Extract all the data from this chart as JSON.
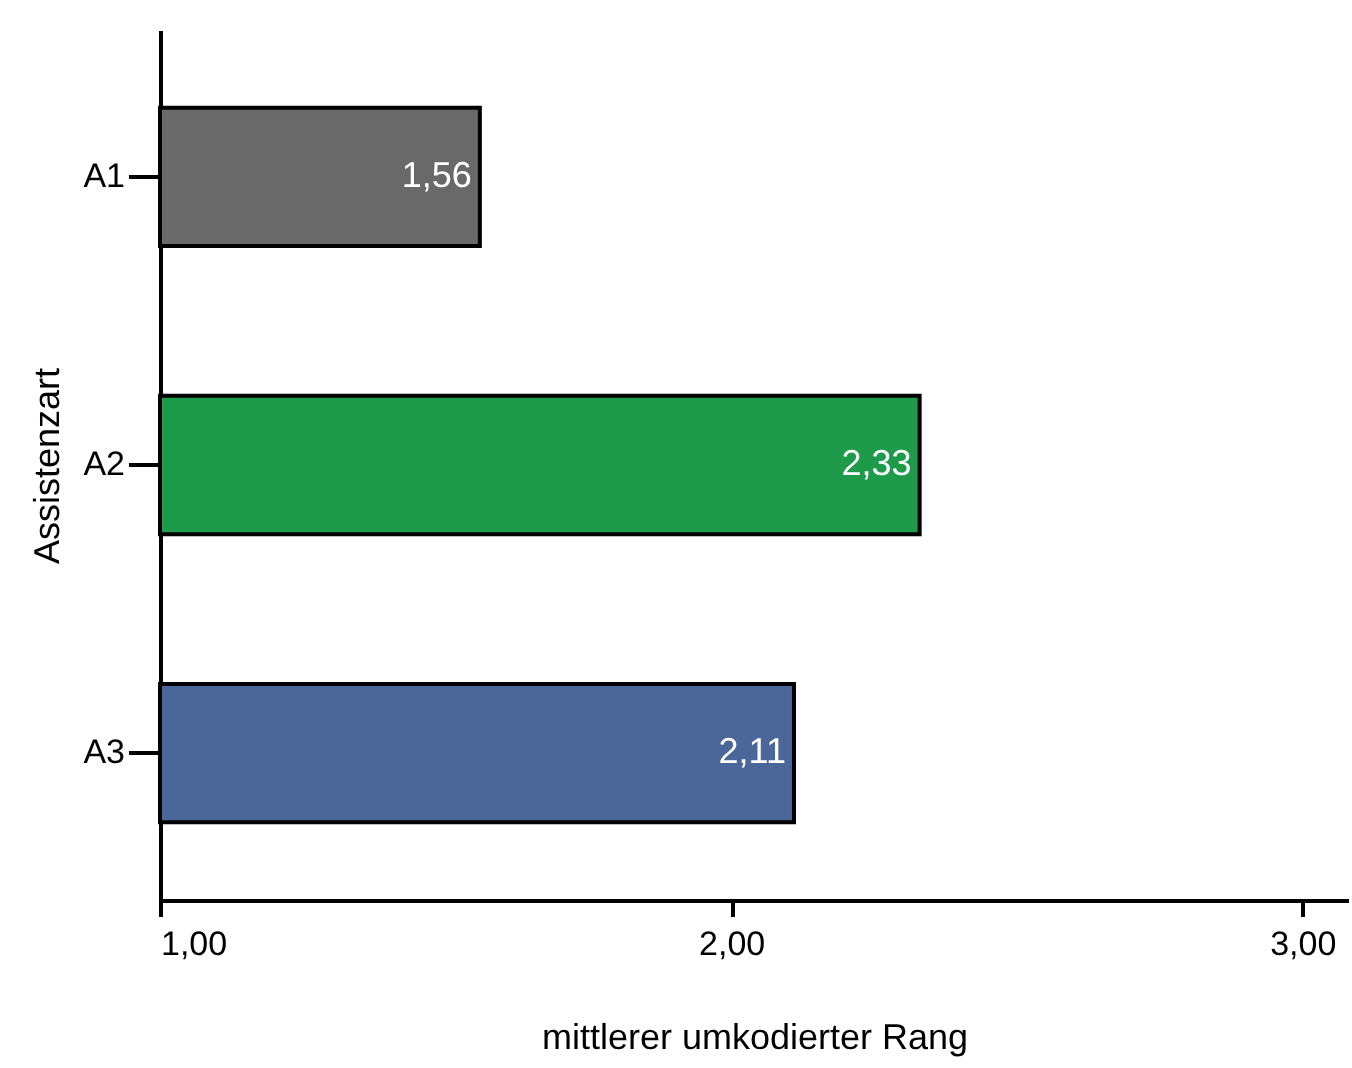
{
  "chart_data": {
    "type": "bar",
    "orientation": "horizontal",
    "xlabel": "mittlerer umkodierter Rang",
    "ylabel": "Assistenzart",
    "categories": [
      "A1",
      "A2",
      "A3"
    ],
    "values": [
      1.56,
      2.33,
      2.11
    ],
    "colors": [
      "#696969",
      "#1e9a4b",
      "#4b6699"
    ],
    "value_labels": [
      "1,56",
      "2,33",
      "2,11"
    ],
    "xlim": [
      1,
      3.08
    ],
    "xticks": [
      {
        "value": 1,
        "label": "1,00"
      },
      {
        "value": 2,
        "label": "2,00"
      },
      {
        "value": 3,
        "label": "3,00"
      }
    ],
    "grid": false
  }
}
